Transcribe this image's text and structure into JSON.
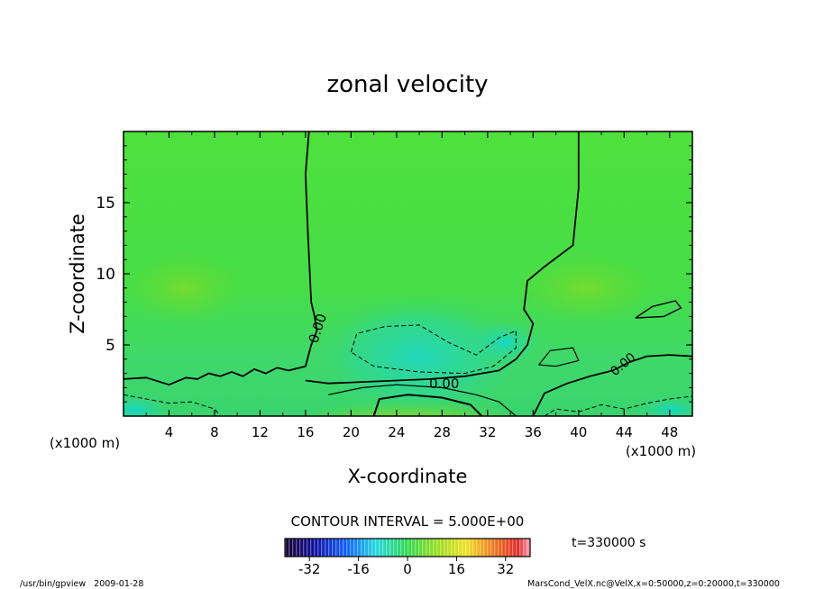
{
  "chart_data": {
    "type": "heatmap",
    "title": "zonal velocity",
    "xlabel": "X-coordinate",
    "ylabel": "Z-coordinate",
    "x_unit_label": "(x1000 m)",
    "y_unit_label": "(x1000 m)",
    "xlim": [
      0,
      50
    ],
    "ylim": [
      0,
      20
    ],
    "x_ticks": [
      4,
      8,
      12,
      16,
      20,
      24,
      28,
      32,
      36,
      40,
      44,
      48
    ],
    "y_ticks": [
      5,
      10,
      15
    ],
    "x_tick_labels": [
      "4",
      "8",
      "12",
      "16",
      "20",
      "24",
      "28",
      "32",
      "36",
      "40",
      "44",
      "48"
    ],
    "y_tick_labels": [
      "5",
      "10",
      "15"
    ],
    "contour_interval_label": "CONTOUR INTERVAL = 5.000E+00",
    "contour_labels": [
      "0.00",
      "0.00",
      "0.00"
    ],
    "colorbar": {
      "range": [
        -40,
        40
      ],
      "tick_values": [
        -32,
        -16,
        0,
        16,
        32
      ],
      "tick_labels": [
        "-32",
        "-16",
        "0",
        "16",
        "32"
      ]
    },
    "time_label": "t=330000 s",
    "footer_left": "/usr/bin/gpview   2009-01-28",
    "footer_right": "MarsCond_VelX.nc@VelX,x=0:50000,z=0:20000,t=330000",
    "zero_contour_left": [
      [
        16.3,
        20
      ],
      [
        16.0,
        17
      ],
      [
        16.2,
        13
      ],
      [
        16.5,
        8
      ],
      [
        16.8,
        7
      ],
      [
        17.0,
        6
      ],
      [
        16.5,
        5
      ],
      [
        16.0,
        3.5
      ],
      [
        14.5,
        3.2
      ],
      [
        13.5,
        3.4
      ],
      [
        12.5,
        3.0
      ],
      [
        11.5,
        3.3
      ],
      [
        10.5,
        2.8
      ],
      [
        9.5,
        3.1
      ],
      [
        8.5,
        2.8
      ],
      [
        7.5,
        3.0
      ],
      [
        6.5,
        2.6
      ],
      [
        5.5,
        2.7
      ],
      [
        4,
        2.2
      ],
      [
        2,
        2.7
      ],
      [
        0,
        2.6
      ]
    ],
    "zero_contour_right": [
      [
        40.0,
        20
      ],
      [
        40.0,
        16
      ],
      [
        39.5,
        12
      ],
      [
        37.0,
        10.5
      ],
      [
        35.5,
        9.5
      ],
      [
        35.2,
        7.5
      ],
      [
        36.0,
        6.5
      ],
      [
        35.5,
        5.0
      ],
      [
        34.5,
        4.0
      ],
      [
        33,
        3.2
      ],
      [
        30,
        2.8
      ],
      [
        27,
        2.6
      ],
      [
        24,
        2.5
      ],
      [
        21,
        2.4
      ],
      [
        18,
        2.3
      ],
      [
        16,
        2.5
      ]
    ],
    "neg_dash_center": [
      [
        20,
        4.5
      ],
      [
        20.5,
        5.8
      ],
      [
        23,
        6.3
      ],
      [
        26,
        6.4
      ],
      [
        28.5,
        5.2
      ],
      [
        31,
        4.3
      ],
      [
        33,
        5.5
      ],
      [
        34.5,
        6.0
      ],
      [
        34.5,
        4.8
      ],
      [
        32.5,
        3.5
      ],
      [
        30,
        3.0
      ],
      [
        26,
        3.1
      ],
      [
        22,
        3.5
      ],
      [
        20,
        4.5
      ]
    ],
    "pos_contour_bottom": [
      [
        18,
        1.5
      ],
      [
        21,
        2.0
      ],
      [
        24,
        2.2
      ],
      [
        28,
        2.0
      ],
      [
        31,
        1.5
      ],
      [
        33,
        1.0
      ],
      [
        34.5,
        0
      ]
    ],
    "pos_contour_inner": [
      [
        22,
        0
      ],
      [
        22.5,
        1.2
      ],
      [
        25,
        1.5
      ],
      [
        28,
        1.3
      ],
      [
        30.5,
        0.8
      ],
      [
        31.5,
        0
      ]
    ],
    "zero_contour_east": [
      [
        36,
        0
      ],
      [
        37,
        1.6
      ],
      [
        39,
        2.3
      ],
      [
        41,
        2.8
      ],
      [
        43,
        3.2
      ],
      [
        44.5,
        3.8
      ],
      [
        46,
        4.2
      ],
      [
        48,
        4.3
      ],
      [
        50,
        4.2
      ]
    ],
    "neg_dash_west": [
      [
        0,
        1.5
      ],
      [
        2,
        1.2
      ],
      [
        4,
        0.9
      ],
      [
        6,
        1.0
      ],
      [
        8,
        0.5
      ],
      [
        8.5,
        0
      ]
    ],
    "neg_dash_east": [
      [
        37,
        0
      ],
      [
        38,
        0.5
      ],
      [
        40,
        0.3
      ],
      [
        42,
        0.8
      ],
      [
        44,
        0.5
      ],
      [
        46,
        0.9
      ],
      [
        48,
        1.2
      ],
      [
        50,
        1.4
      ]
    ],
    "closed_contour_ne": [
      [
        45.0,
        6.9
      ],
      [
        46.5,
        7.7
      ],
      [
        48.5,
        8.1
      ],
      [
        49.0,
        7.6
      ],
      [
        47.5,
        7.0
      ],
      [
        45.0,
        6.9
      ]
    ],
    "closed_contour_e": [
      [
        36.5,
        3.6
      ],
      [
        37.5,
        4.6
      ],
      [
        39.5,
        4.8
      ],
      [
        40.0,
        3.9
      ],
      [
        38,
        3.5
      ],
      [
        36.5,
        3.6
      ]
    ]
  }
}
